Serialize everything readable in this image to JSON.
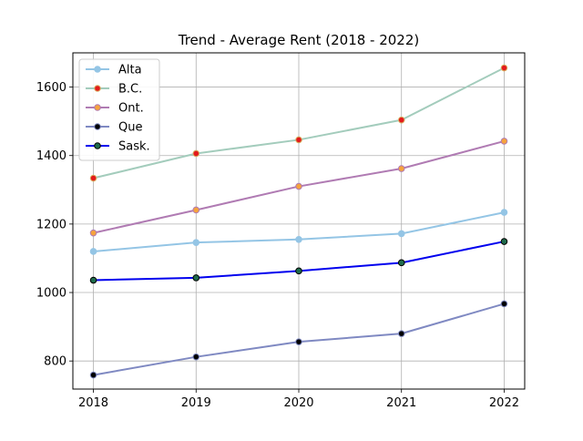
{
  "chart_data": {
    "type": "line",
    "title": "Trend - Average Rent (2018 - 2022)",
    "xlabel": "",
    "ylabel": "",
    "x": [
      "2018",
      "2019",
      "2020",
      "2021",
      "2022"
    ],
    "xlim": [
      2017.8,
      2022.2
    ],
    "ylim": [
      718,
      1700
    ],
    "yticks": [
      800,
      1000,
      1200,
      1400,
      1600
    ],
    "grid": true,
    "legend_position": "top-left",
    "series": [
      {
        "name": "Alta",
        "values": [
          1120,
          1146,
          1155,
          1172,
          1234
        ],
        "line_color": "#94c5e5",
        "marker_fill": "#94c5e5",
        "marker_edge": "#94c5e5"
      },
      {
        "name": "B.C.",
        "values": [
          1334,
          1406,
          1446,
          1504,
          1656
        ],
        "line_color": "#a3ccbc",
        "marker_fill": "#e31a1c",
        "marker_edge": "#d8b365"
      },
      {
        "name": "Ont.",
        "values": [
          1174,
          1241,
          1310,
          1362,
          1442
        ],
        "line_color": "#b07bb3",
        "marker_fill": "#f5a33d",
        "marker_edge": "#b07bb3"
      },
      {
        "name": "Que",
        "values": [
          759,
          812,
          856,
          880,
          967
        ],
        "line_color": "#7f89c2",
        "marker_fill": "#000000",
        "marker_edge": "#7f89c2"
      },
      {
        "name": "Sask.",
        "values": [
          1036,
          1043,
          1063,
          1087,
          1149
        ],
        "line_color": "#0000ee",
        "marker_fill": "#1f6b4c",
        "marker_edge": "#000000"
      }
    ]
  }
}
